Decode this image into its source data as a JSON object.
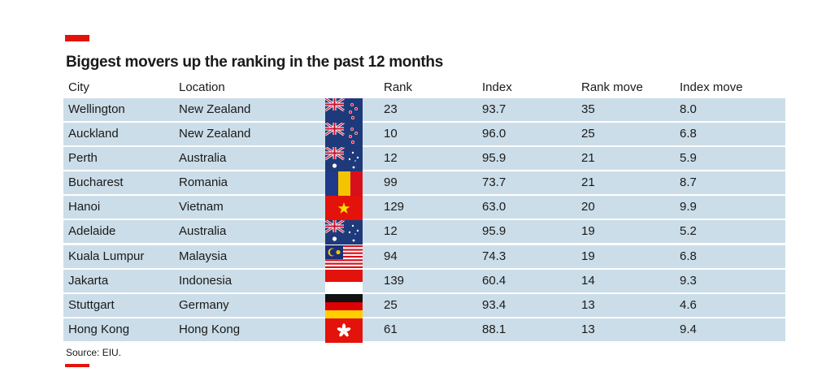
{
  "title": "Biggest movers up the ranking in the past 12 months",
  "source": "Source: EIU.",
  "colors": {
    "accent": "#e3120b",
    "row_bg": "#cbdde8",
    "row_border": "#ffffff"
  },
  "columns": [
    "City",
    "Location",
    "Rank",
    "Index",
    "Rank move",
    "Index move"
  ],
  "chart_data": {
    "type": "table",
    "title": "Biggest movers up the ranking in the past 12 months",
    "columns": [
      "City",
      "Location",
      "Rank",
      "Index",
      "Rank move",
      "Index move"
    ],
    "rows": [
      {
        "city": "Wellington",
        "location": "New Zealand",
        "flag": "new-zealand-flag",
        "rank": "23",
        "index": "93.7",
        "rank_move": "35",
        "index_move": "8.0"
      },
      {
        "city": "Auckland",
        "location": "New Zealand",
        "flag": "new-zealand-flag",
        "rank": "10",
        "index": "96.0",
        "rank_move": "25",
        "index_move": "6.8"
      },
      {
        "city": "Perth",
        "location": "Australia",
        "flag": "australia-flag",
        "rank": "12",
        "index": "95.9",
        "rank_move": "21",
        "index_move": "5.9"
      },
      {
        "city": "Bucharest",
        "location": "Romania",
        "flag": "romania-flag",
        "rank": "99",
        "index": "73.7",
        "rank_move": "21",
        "index_move": "8.7"
      },
      {
        "city": "Hanoi",
        "location": "Vietnam",
        "flag": "vietnam-flag",
        "rank": "129",
        "index": "63.0",
        "rank_move": "20",
        "index_move": "9.9"
      },
      {
        "city": "Adelaide",
        "location": "Australia",
        "flag": "australia-flag",
        "rank": "12",
        "index": "95.9",
        "rank_move": "19",
        "index_move": "5.2"
      },
      {
        "city": "Kuala Lumpur",
        "location": "Malaysia",
        "flag": "malaysia-flag",
        "rank": "94",
        "index": "74.3",
        "rank_move": "19",
        "index_move": "6.8"
      },
      {
        "city": "Jakarta",
        "location": "Indonesia",
        "flag": "indonesia-flag",
        "rank": "139",
        "index": "60.4",
        "rank_move": "14",
        "index_move": "9.3"
      },
      {
        "city": "Stuttgart",
        "location": "Germany",
        "flag": "germany-flag",
        "rank": "25",
        "index": "93.4",
        "rank_move": "13",
        "index_move": "4.6"
      },
      {
        "city": "Hong Kong",
        "location": "Hong Kong",
        "flag": "hong-kong-flag",
        "rank": "61",
        "index": "88.1",
        "rank_move": "13",
        "index_move": "9.4"
      }
    ]
  }
}
